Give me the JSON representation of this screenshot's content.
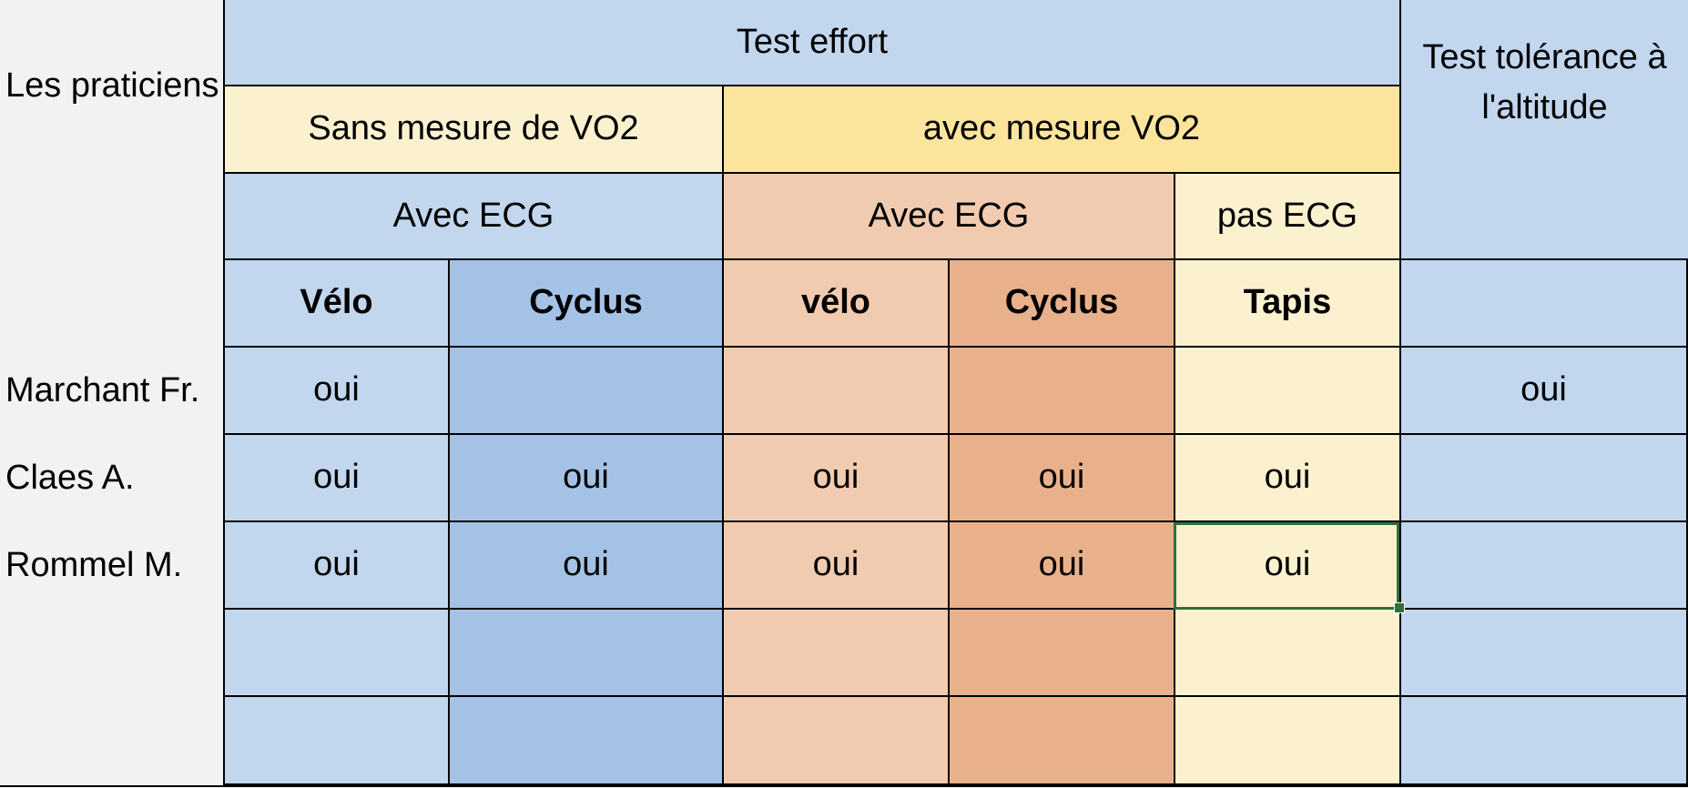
{
  "colors": {
    "blue_light": "#c2d7ee",
    "blue_mid": "#a4c2e5",
    "yellow_light": "#fcf1cf",
    "yellow_mid": "#fbe59d",
    "orange_light": "#f1cbb0",
    "orange_mid": "#e9b18b",
    "background": "#f2f2f2",
    "grid_line": "#000000",
    "selection": "#2f6e3b"
  },
  "labels": {
    "practitioners": "Les praticiens"
  },
  "headers": {
    "test_effort": "Test effort",
    "altitude": "Test tolérance à l'altitude",
    "sans_vo2": "Sans mesure de VO2",
    "avec_vo2": "avec mesure VO2",
    "avec_ecg_1": "Avec ECG",
    "avec_ecg_2": "Avec ECG",
    "pas_ecg": "pas ECG"
  },
  "columns": [
    "Vélo",
    "Cyclus",
    "vélo",
    "Cyclus",
    "Tapis",
    ""
  ],
  "rows": [
    {
      "name": "Marchant Fr.",
      "values": [
        "oui",
        "",
        "",
        "",
        "",
        "oui"
      ]
    },
    {
      "name": "Claes A.",
      "values": [
        "oui",
        "oui",
        "oui",
        "oui",
        "oui",
        ""
      ]
    },
    {
      "name": "Rommel M.",
      "values": [
        "oui",
        "oui",
        "oui",
        "oui",
        "oui",
        ""
      ]
    },
    {
      "name": "",
      "values": [
        "",
        "",
        "",
        "",
        "",
        ""
      ]
    },
    {
      "name": "",
      "values": [
        "",
        "",
        "",
        "",
        "",
        ""
      ]
    }
  ],
  "selected_cell": {
    "row": 2,
    "col": 4
  }
}
